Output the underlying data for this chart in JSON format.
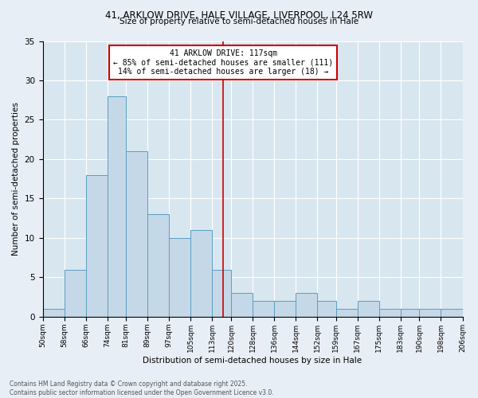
{
  "title1": "41, ARKLOW DRIVE, HALE VILLAGE, LIVERPOOL, L24 5RW",
  "title2": "Size of property relative to semi-detached houses in Hale",
  "xlabel": "Distribution of semi-detached houses by size in Hale",
  "ylabel": "Number of semi-detached properties",
  "footer": "Contains HM Land Registry data © Crown copyright and database right 2025.\nContains public sector information licensed under the Open Government Licence v3.0.",
  "bin_edges": [
    50,
    58,
    66,
    74,
    81,
    89,
    97,
    105,
    113,
    120,
    128,
    136,
    144,
    152,
    159,
    167,
    175,
    183,
    190,
    198,
    206
  ],
  "counts": [
    1,
    6,
    18,
    28,
    21,
    13,
    10,
    11,
    6,
    3,
    2,
    2,
    3,
    2,
    1,
    2,
    1,
    1,
    1,
    1
  ],
  "bar_color": "#c5d8e8",
  "bar_edge_color": "#5a9fc0",
  "property_size": 117,
  "vline_color": "#cc0000",
  "annotation_title": "41 ARKLOW DRIVE: 117sqm",
  "annotation_line1": "← 85% of semi-detached houses are smaller (111)",
  "annotation_line2": "14% of semi-detached houses are larger (18) →",
  "annotation_box_color": "#cc0000",
  "bg_color": "#e8eef5",
  "plot_bg_color": "#d8e6f0",
  "ylim": [
    0,
    35
  ],
  "yticks": [
    0,
    5,
    10,
    15,
    20,
    25,
    30,
    35
  ]
}
